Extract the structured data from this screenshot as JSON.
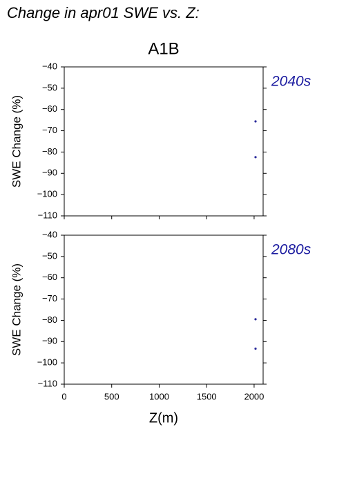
{
  "title": "Change in apr01 SWE vs. Z:",
  "subtitle": "A1B",
  "chart_data": [
    {
      "type": "scatter",
      "label": "2040s",
      "ylabel": "SWE Change (%)",
      "x": [
        2015,
        2015
      ],
      "values": [
        -65.6,
        -82.4
      ],
      "color": "#2a2a9a",
      "label_color": "#1c1ca0",
      "xlim": [
        0,
        2095
      ],
      "ylim": [
        -110,
        -40
      ],
      "xticks": [
        0,
        500,
        1000,
        1500,
        2000
      ],
      "yticks": [
        {
          "value": -40,
          "label": "−40"
        },
        {
          "value": -50,
          "label": "−50"
        },
        {
          "value": -60,
          "label": "−60"
        },
        {
          "value": -70,
          "label": "−70"
        },
        {
          "value": -80,
          "label": "−80"
        },
        {
          "value": -90,
          "label": "−90"
        },
        {
          "value": -100,
          "label": "−100"
        },
        {
          "value": -110,
          "label": "−110"
        }
      ]
    },
    {
      "type": "scatter",
      "label": "2080s",
      "ylabel": "SWE Change (%)",
      "xlabel": "Z(m)",
      "x": [
        2015,
        2015
      ],
      "values": [
        -79.5,
        -93.3
      ],
      "color": "#2a2a9a",
      "label_color": "#1c1ca0",
      "xlim": [
        0,
        2095
      ],
      "ylim": [
        -110,
        -40
      ],
      "xticks": [
        0,
        500,
        1000,
        1500,
        2000
      ],
      "yticks": [
        {
          "value": -40,
          "label": "−40"
        },
        {
          "value": -50,
          "label": "−50"
        },
        {
          "value": -60,
          "label": "−60"
        },
        {
          "value": -70,
          "label": "−70"
        },
        {
          "value": -80,
          "label": "−80"
        },
        {
          "value": -90,
          "label": "−90"
        },
        {
          "value": -100,
          "label": "−100"
        },
        {
          "value": -110,
          "label": "−110"
        }
      ]
    }
  ]
}
